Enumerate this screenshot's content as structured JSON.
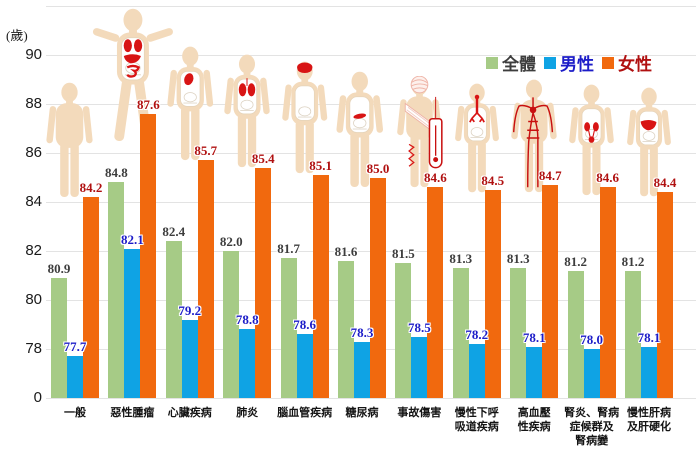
{
  "unit_label": "(歲)",
  "chart_data": {
    "type": "bar",
    "title": "",
    "unit": "(歲)",
    "grid": true,
    "legend_position": "top-right",
    "ylim_visible": [
      76,
      92
    ],
    "yticks": [
      90,
      88,
      86,
      84,
      82,
      80,
      78
    ],
    "broken_axis_label": "0",
    "categories": [
      {
        "label": "一般",
        "lines": [
          "一般"
        ],
        "icon": "general-body-icon"
      },
      {
        "label": "惡性腫瘤",
        "lines": [
          "惡性腫瘤"
        ],
        "icon": "tumor-body-icon"
      },
      {
        "label": "心臟疾病",
        "lines": [
          "心臟疾病"
        ],
        "icon": "heart-body-icon"
      },
      {
        "label": "肺炎",
        "lines": [
          "肺炎"
        ],
        "icon": "lungs-body-icon"
      },
      {
        "label": "腦血管疾病",
        "lines": [
          "腦血管疾病"
        ],
        "icon": "brain-body-icon"
      },
      {
        "label": "糖尿病",
        "lines": [
          "糖尿病"
        ],
        "icon": "pancreas-body-icon"
      },
      {
        "label": "事故傷害",
        "lines": [
          "事故傷害"
        ],
        "icon": "accident-body-icon"
      },
      {
        "label": "慢性下呼吸道疾病",
        "lines": [
          "慢性下呼",
          "吸道疾病"
        ],
        "icon": "airway-body-icon"
      },
      {
        "label": "高血壓性疾病",
        "lines": [
          "高血壓",
          "性疾病"
        ],
        "icon": "vessels-body-icon"
      },
      {
        "label": "腎炎、腎病症候群及腎病變",
        "lines": [
          "腎炎、腎病",
          "症候群及",
          "腎病變"
        ],
        "icon": "kidney-body-icon"
      },
      {
        "label": "慢性肝病及肝硬化",
        "lines": [
          "慢性肝病",
          "及肝硬化"
        ],
        "icon": "liver-body-icon"
      }
    ],
    "series": [
      {
        "id": "all",
        "name": "全體",
        "color": "#a6cb86",
        "label_color": "#3d3d3d",
        "values": [
          80.9,
          84.8,
          82.4,
          82.0,
          81.7,
          81.6,
          81.5,
          81.3,
          81.3,
          81.2,
          81.2
        ]
      },
      {
        "id": "male",
        "name": "男性",
        "color": "#0fa3e4",
        "label_color": "#1c1cc8",
        "values": [
          77.7,
          82.1,
          79.2,
          78.8,
          78.6,
          78.3,
          78.5,
          78.2,
          78.1,
          78.0,
          78.1
        ]
      },
      {
        "id": "female",
        "name": "女性",
        "color": "#f1690e",
        "label_color": "#b01010",
        "values": [
          84.2,
          87.6,
          85.7,
          85.4,
          85.1,
          85.0,
          84.6,
          84.5,
          84.7,
          84.6,
          84.4
        ]
      }
    ]
  }
}
